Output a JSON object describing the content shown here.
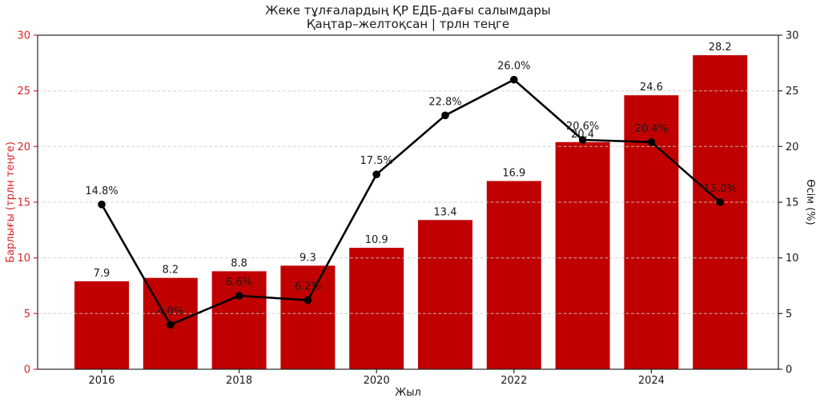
{
  "title": {
    "line1": "Жеке тұлғалардың ҚР ЕДБ-дағы салымдары",
    "line2": "Қаңтар–желтоқсан | трлн теңге"
  },
  "chart_data": {
    "type": "bar",
    "title": "Жеке тұлғалардың ҚР ЕДБ-дағы салымдары",
    "subtitle": "Қаңтар–желтоқсан | трлн теңге",
    "categories": [
      2016,
      2017,
      2018,
      2019,
      2020,
      2021,
      2022,
      2023,
      2024,
      2025
    ],
    "series": [
      {
        "name": "deposits-bars",
        "type": "bar",
        "color": "#c00000",
        "values": [
          7.9,
          8.2,
          8.8,
          9.3,
          10.9,
          13.4,
          16.9,
          20.4,
          24.6,
          28.2
        ],
        "axis": "left"
      },
      {
        "name": "growth-line",
        "type": "line",
        "color": "#000000",
        "values": [
          14.8,
          4.0,
          6.6,
          6.2,
          17.5,
          22.8,
          26.0,
          20.6,
          20.4,
          15.0
        ],
        "label_suffix": "%",
        "axis": "right"
      }
    ],
    "left_axis": {
      "label": "Барлығы (трлн теңге)",
      "color": "#d62728",
      "ticks": [
        0,
        5,
        10,
        15,
        20,
        25,
        30
      ],
      "range": [
        0,
        30
      ]
    },
    "right_axis": {
      "label": "Өсім (%)",
      "color": "#1a1a1a",
      "ticks": [
        0,
        5,
        10,
        15,
        20,
        25,
        30
      ],
      "range": [
        0,
        30
      ]
    },
    "x_axis": {
      "label": "Жыл",
      "tick_labels": [
        "2016",
        "2018",
        "2020",
        "2022",
        "2024"
      ]
    },
    "grid": true,
    "gridline_values": [
      5,
      10,
      15,
      20,
      25
    ],
    "legend": "none",
    "colors": {
      "bar": "#c00000",
      "line": "#000000",
      "left_text": "#d62728",
      "right_text": "#1a1a1a",
      "grid": "#cccccc",
      "spine": "#262626"
    }
  }
}
